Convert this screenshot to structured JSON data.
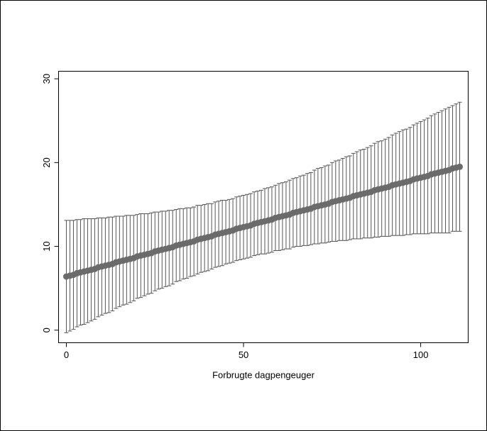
{
  "chart_data": {
    "type": "errorbar",
    "x_label": "Forbrugte dagpengeuger",
    "x": [
      0,
      1,
      2,
      3,
      4,
      5,
      6,
      7,
      8,
      9,
      10,
      11,
      12,
      13,
      14,
      15,
      16,
      17,
      18,
      19,
      20,
      21,
      22,
      23,
      24,
      25,
      26,
      27,
      28,
      29,
      30,
      31,
      32,
      33,
      34,
      35,
      36,
      37,
      38,
      39,
      40,
      41,
      42,
      43,
      44,
      45,
      46,
      47,
      48,
      49,
      50,
      51,
      52,
      53,
      54,
      55,
      56,
      57,
      58,
      59,
      60,
      61,
      62,
      63,
      64,
      65,
      66,
      67,
      68,
      69,
      70,
      71,
      72,
      73,
      74,
      75,
      76,
      77,
      78,
      79,
      80,
      81,
      82,
      83,
      84,
      85,
      86,
      87,
      88,
      89,
      90,
      91,
      92,
      93,
      94,
      95,
      96,
      97,
      98,
      99,
      100,
      101,
      102,
      103,
      104,
      105,
      106,
      107,
      108,
      109,
      110,
      111
    ],
    "values": [
      6.4,
      6.5,
      6.6,
      6.8,
      6.9,
      7.0,
      7.1,
      7.2,
      7.3,
      7.5,
      7.6,
      7.7,
      7.8,
      7.9,
      8.1,
      8.2,
      8.3,
      8.4,
      8.5,
      8.6,
      8.8,
      8.9,
      9.0,
      9.1,
      9.2,
      9.4,
      9.5,
      9.6,
      9.7,
      9.8,
      9.9,
      10.1,
      10.2,
      10.3,
      10.4,
      10.5,
      10.6,
      10.8,
      10.9,
      11.0,
      11.1,
      11.2,
      11.4,
      11.5,
      11.6,
      11.7,
      11.8,
      11.9,
      12.1,
      12.2,
      12.3,
      12.4,
      12.5,
      12.7,
      12.8,
      12.9,
      13.0,
      13.1,
      13.2,
      13.4,
      13.5,
      13.6,
      13.7,
      13.8,
      14.0,
      14.1,
      14.2,
      14.3,
      14.4,
      14.5,
      14.7,
      14.8,
      14.9,
      15.0,
      15.1,
      15.3,
      15.4,
      15.5,
      15.6,
      15.7,
      15.8,
      16.0,
      16.1,
      16.2,
      16.3,
      16.4,
      16.5,
      16.7,
      16.8,
      16.9,
      17.0,
      17.1,
      17.3,
      17.4,
      17.5,
      17.6,
      17.7,
      17.8,
      18.0,
      18.1,
      18.2,
      18.3,
      18.4,
      18.6,
      18.7,
      18.8,
      18.9,
      19.0,
      19.1,
      19.3,
      19.4,
      19.5
    ],
    "errors": [
      6.7,
      6.6,
      6.5,
      6.4,
      6.3,
      6.3,
      6.2,
      6.1,
      6.0,
      5.9,
      5.8,
      5.7,
      5.7,
      5.6,
      5.5,
      5.4,
      5.3,
      5.3,
      5.2,
      5.1,
      5.0,
      5.0,
      4.9,
      4.8,
      4.8,
      4.7,
      4.6,
      4.6,
      4.5,
      4.5,
      4.4,
      4.3,
      4.3,
      4.2,
      4.2,
      4.1,
      4.1,
      4.1,
      4.0,
      4.0,
      4.0,
      3.9,
      3.9,
      3.9,
      3.9,
      3.8,
      3.8,
      3.8,
      3.8,
      3.8,
      3.8,
      3.8,
      3.8,
      3.8,
      3.8,
      3.8,
      3.9,
      3.9,
      3.9,
      3.9,
      4.0,
      4.0,
      4.0,
      4.1,
      4.1,
      4.1,
      4.2,
      4.2,
      4.3,
      4.3,
      4.4,
      4.5,
      4.5,
      4.6,
      4.6,
      4.7,
      4.8,
      4.8,
      4.9,
      5.0,
      5.0,
      5.1,
      5.2,
      5.3,
      5.3,
      5.4,
      5.5,
      5.6,
      5.7,
      5.7,
      5.8,
      5.9,
      6.0,
      6.1,
      6.2,
      6.3,
      6.3,
      6.4,
      6.5,
      6.6,
      6.7,
      6.8,
      6.9,
      7.0,
      7.1,
      7.2,
      7.3,
      7.4,
      7.5,
      7.5,
      7.6,
      7.7
    ],
    "color": "#6b6b6b",
    "error_color": "#555555",
    "xlim": [
      -2.2,
      113.4
    ],
    "xticks": [
      0,
      50,
      100
    ],
    "ylim": [
      -1.5,
      30.9
    ],
    "yticks": [
      0,
      10,
      20,
      30
    ]
  }
}
